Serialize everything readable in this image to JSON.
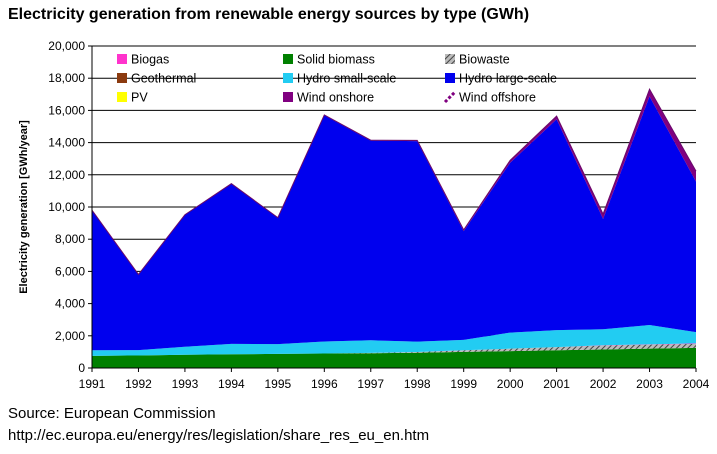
{
  "chart_data": {
    "type": "area",
    "stacked": true,
    "title": "Electricity generation from renewable energy sources by type (GWh)",
    "xlabel": "",
    "ylabel": "Electricity generation [GWh/year]",
    "ylim": [
      0,
      20000
    ],
    "ytick_step": 2000,
    "grid": true,
    "legend_position": "top",
    "x": [
      1991,
      1992,
      1993,
      1994,
      1995,
      1996,
      1997,
      1998,
      1999,
      2000,
      2001,
      2002,
      2003,
      2004
    ],
    "x_tick_labels": [
      "1991",
      "1992",
      "1993",
      "1994",
      "1995",
      "1996",
      "1997",
      "1998",
      "1999",
      "2000",
      "2001",
      "2002",
      "2003",
      "2004"
    ],
    "y_tick_labels": [
      "0",
      "2,000",
      "4,000",
      "6,000",
      "8,000",
      "10,000",
      "12,000",
      "14,000",
      "16,000",
      "18,000",
      "20,000"
    ],
    "series": [
      {
        "name": "Solid biomass",
        "color": "#008000",
        "values": [
          750,
          780,
          820,
          850,
          880,
          900,
          920,
          950,
          1000,
          1050,
          1100,
          1150,
          1200,
          1250
        ]
      },
      {
        "name": "Biowaste",
        "color": "#888888",
        "pattern": "hatch",
        "values": [
          0,
          0,
          0,
          0,
          0,
          0,
          20,
          40,
          100,
          150,
          200,
          250,
          250,
          250
        ]
      },
      {
        "name": "Biogas",
        "color": "#ff33cc",
        "values": [
          0,
          0,
          0,
          0,
          0,
          0,
          0,
          0,
          0,
          0,
          0,
          10,
          20,
          30
        ]
      },
      {
        "name": "Geothermal",
        "color": "#8b3a0f",
        "values": [
          0,
          0,
          0,
          0,
          0,
          0,
          0,
          0,
          0,
          0,
          0,
          0,
          0,
          0
        ]
      },
      {
        "name": "PV",
        "color": "#ffff00",
        "values": [
          0,
          0,
          0,
          0,
          0,
          0,
          0,
          0,
          0,
          0,
          0,
          0,
          0,
          0
        ]
      },
      {
        "name": "Hydro small-scale",
        "color": "#22ccf2",
        "values": [
          350,
          330,
          500,
          650,
          600,
          750,
          780,
          650,
          650,
          1000,
          1050,
          1000,
          1200,
          700
        ]
      },
      {
        "name": "Hydro large-scale",
        "color": "#0000ee",
        "values": [
          8700,
          4700,
          8200,
          9950,
          7850,
          14050,
          12400,
          12450,
          6750,
          10550,
          13100,
          6850,
          14200,
          9350
        ]
      },
      {
        "name": "Wind onshore",
        "color": "#800080",
        "values": [
          0,
          0,
          0,
          0,
          10,
          20,
          30,
          50,
          80,
          150,
          200,
          300,
          450,
          650
        ]
      },
      {
        "name": "Wind offshore",
        "color": "#800080",
        "pattern": "dash",
        "values": [
          0,
          0,
          0,
          0,
          0,
          0,
          0,
          0,
          0,
          0,
          0,
          0,
          0,
          0
        ]
      }
    ],
    "legend": [
      {
        "name": "Biogas",
        "color": "#ff33cc",
        "swatch": "solid"
      },
      {
        "name": "Solid biomass",
        "color": "#008000",
        "swatch": "solid"
      },
      {
        "name": "Biowaste",
        "color": "#666666",
        "swatch": "hatch"
      },
      {
        "name": "Geothermal",
        "color": "#8b3a0f",
        "swatch": "solid"
      },
      {
        "name": "Hydro small-scale",
        "color": "#22ccf2",
        "swatch": "solid"
      },
      {
        "name": "Hydro large-scale",
        "color": "#0000ee",
        "swatch": "solid"
      },
      {
        "name": "PV",
        "color": "#ffff00",
        "swatch": "solid"
      },
      {
        "name": "Wind onshore",
        "color": "#800080",
        "swatch": "solid"
      },
      {
        "name": "Wind offshore",
        "color": "#800080",
        "swatch": "dash"
      }
    ]
  },
  "footer": {
    "source": "Source: European Commission",
    "url": "http://ec.europa.eu/energy/res/legislation/share_res_eu_en.htm"
  }
}
